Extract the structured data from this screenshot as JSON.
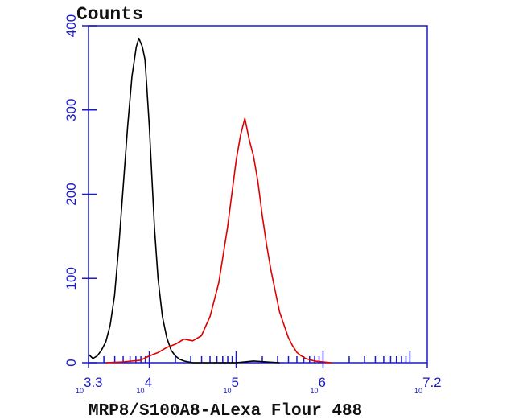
{
  "chart_data": {
    "type": "line",
    "title": "",
    "ylabel": "Counts",
    "xlabel": "MRP8/S100A8-ALexa Flour 488",
    "x_scale": "log",
    "xlim": [
      3.3,
      7.2
    ],
    "ylim": [
      0,
      400
    ],
    "y_ticks": [
      0,
      100,
      200,
      300,
      400
    ],
    "x_ticks": [
      {
        "base": "10",
        "exp": "3.3",
        "value": 3.3
      },
      {
        "base": "10",
        "exp": "4",
        "value": 4
      },
      {
        "base": "10",
        "exp": "5",
        "value": 5
      },
      {
        "base": "10",
        "exp": "6",
        "value": 6
      },
      {
        "base": "10",
        "exp": "7.2",
        "value": 7.2
      }
    ],
    "grid": false,
    "legend": "none",
    "series": [
      {
        "color": "#000000",
        "x": [
          3.3,
          3.35,
          3.4,
          3.45,
          3.5,
          3.55,
          3.6,
          3.65,
          3.7,
          3.75,
          3.8,
          3.85,
          3.88,
          3.92,
          3.95,
          3.97,
          4.0,
          4.03,
          4.06,
          4.1,
          4.15,
          4.2,
          4.25,
          4.3,
          4.35,
          4.4,
          4.45,
          4.5,
          4.55,
          5.0,
          5.2,
          5.35,
          5.5
        ],
        "y": [
          10,
          5,
          8,
          15,
          25,
          45,
          80,
          140,
          210,
          280,
          340,
          375,
          385,
          375,
          360,
          330,
          280,
          220,
          160,
          100,
          55,
          30,
          15,
          8,
          4,
          2,
          1,
          0,
          0,
          0,
          2,
          1,
          0
        ]
      },
      {
        "color": "#e00000",
        "x": [
          3.5,
          3.7,
          3.9,
          4.0,
          4.1,
          4.2,
          4.3,
          4.4,
          4.5,
          4.6,
          4.7,
          4.8,
          4.9,
          5.0,
          5.05,
          5.1,
          5.15,
          5.2,
          5.25,
          5.3,
          5.35,
          5.4,
          5.45,
          5.5,
          5.55,
          5.6,
          5.65,
          5.7,
          5.75,
          5.8,
          5.9,
          6.0,
          6.1
        ],
        "y": [
          0,
          1,
          3,
          8,
          12,
          18,
          22,
          28,
          26,
          32,
          55,
          95,
          160,
          240,
          270,
          290,
          265,
          245,
          215,
          175,
          140,
          110,
          85,
          60,
          45,
          30,
          20,
          12,
          8,
          5,
          2,
          1,
          0
        ]
      }
    ]
  }
}
